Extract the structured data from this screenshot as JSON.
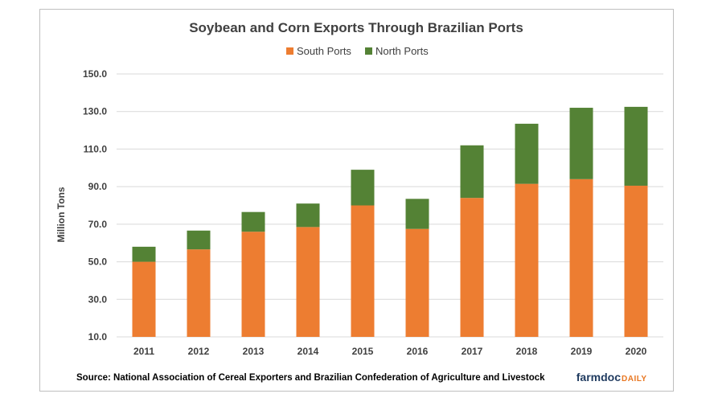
{
  "chart_data": {
    "type": "bar",
    "stacked": true,
    "title": "Soybean and Corn Exports Through Brazilian Ports",
    "ylabel": "Million Tons",
    "xlabel": "",
    "categories": [
      "2011",
      "2012",
      "2013",
      "2014",
      "2015",
      "2016",
      "2017",
      "2018",
      "2019",
      "2020"
    ],
    "series": [
      {
        "name": "South Ports",
        "color": "#ed7d31",
        "values": [
          50.0,
          56.6,
          66.0,
          68.5,
          80.0,
          67.5,
          84.0,
          91.5,
          94.0,
          90.5
        ]
      },
      {
        "name": "North Ports",
        "color": "#548235",
        "values": [
          8.0,
          10.0,
          10.5,
          12.5,
          19.0,
          16.0,
          28.0,
          32.0,
          38.0,
          42.0
        ]
      }
    ],
    "ylim": [
      10,
      150
    ],
    "yticks": [
      "10.0",
      "30.0",
      "50.0",
      "70.0",
      "90.0",
      "110.0",
      "130.0",
      "150.0"
    ],
    "grid": true,
    "legend_position": "top-center"
  },
  "source": "Source: National Association of Cereal Exporters and Brazilian Confederation of Agriculture and Livestock",
  "logo": {
    "part1": "farmdoc",
    "part2": "DAILY"
  }
}
